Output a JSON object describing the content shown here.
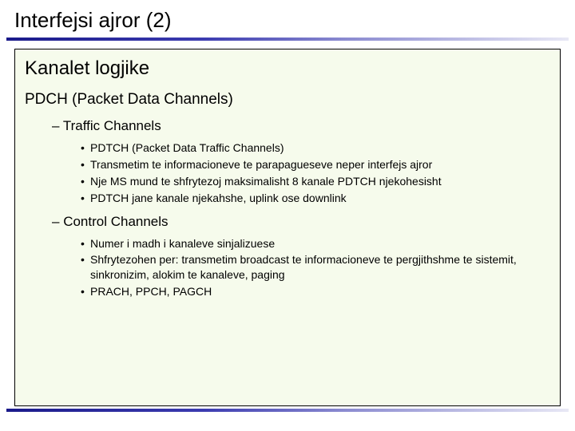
{
  "slide": {
    "title": "Interfejsi ajror (2)",
    "box": {
      "heading": "Kanalet logjike",
      "level1": "PDCH (Packet Data Channels)",
      "sections": [
        {
          "title": "Traffic Channels",
          "bullets": [
            "PDTCH (Packet Data Traffic Channels)",
            "Transmetim te informacioneve te parapagueseve neper interfejs ajror",
            "Nje MS mund te shfrytezoj maksimalisht 8 kanale PDTCH njekohesisht",
            " PDTCH jane kanale njekahshe, uplink ose downlink"
          ]
        },
        {
          "title": "Control Channels",
          "bullets": [
            "Numer i madh i kanaleve sinjalizuese",
            "Shfrytezohen per: transmetim  broadcast te informacioneve te pergjithshme te sistemit, sinkronizim, alokim te kanaleve, paging",
            "PRACH, PPCH, PAGCH"
          ]
        }
      ]
    }
  },
  "style": {
    "background_color": "#ffffff",
    "box_background": "#f6fbec",
    "box_border": "#000000",
    "underline_gradient_start": "#1a1a8a",
    "underline_gradient_end": "#e8e8f5",
    "title_fontsize": 26,
    "heading_fontsize": 24,
    "level1_fontsize": 19,
    "level2_fontsize": 17,
    "level3_fontsize": 14
  }
}
